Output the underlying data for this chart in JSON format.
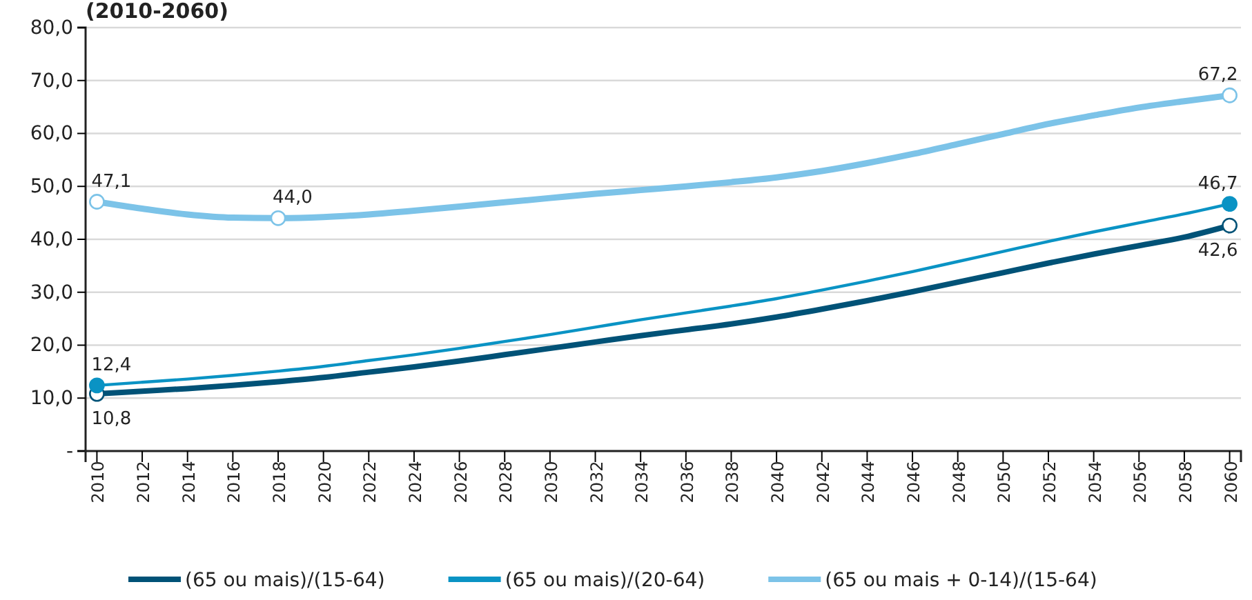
{
  "chart_data": {
    "type": "line",
    "title": "(2010-2060)",
    "x": [
      2010,
      2012,
      2014,
      2016,
      2018,
      2020,
      2022,
      2024,
      2026,
      2028,
      2030,
      2032,
      2034,
      2036,
      2038,
      2040,
      2042,
      2044,
      2046,
      2048,
      2050,
      2052,
      2054,
      2056,
      2058,
      2060
    ],
    "xlim": [
      2009.5,
      2060.5
    ],
    "xticks": [
      2010,
      2012,
      2014,
      2016,
      2018,
      2020,
      2022,
      2024,
      2026,
      2028,
      2030,
      2032,
      2034,
      2036,
      2038,
      2040,
      2042,
      2044,
      2046,
      2048,
      2050,
      2052,
      2054,
      2056,
      2058,
      2060
    ],
    "ylim": [
      0,
      80
    ],
    "yticks": [
      {
        "value": 0,
        "label": "-"
      },
      {
        "value": 10,
        "label": "10,0"
      },
      {
        "value": 20,
        "label": "20,0"
      },
      {
        "value": 30,
        "label": "30,0"
      },
      {
        "value": 40,
        "label": "40,0"
      },
      {
        "value": 50,
        "label": "50,0"
      },
      {
        "value": 60,
        "label": "60,0"
      },
      {
        "value": 70,
        "label": "70,0"
      },
      {
        "value": 80,
        "label": "80,0"
      }
    ],
    "grid": "y",
    "legend": "bottom",
    "series": [
      {
        "name": "(65 ou mais)/(15-64)",
        "color": "#005277",
        "values": [
          10.8,
          11.3,
          11.8,
          12.4,
          13.1,
          13.9,
          14.9,
          15.9,
          17.0,
          18.2,
          19.4,
          20.6,
          21.8,
          22.9,
          24.0,
          25.3,
          26.8,
          28.4,
          30.1,
          31.9,
          33.7,
          35.5,
          37.2,
          38.8,
          40.4,
          42.6
        ]
      },
      {
        "name": "(65 ou mais)/(20-64)",
        "color": "#0a93c4",
        "values": [
          12.4,
          13.0,
          13.6,
          14.3,
          15.1,
          16.0,
          17.1,
          18.2,
          19.4,
          20.7,
          22.0,
          23.4,
          24.8,
          26.1,
          27.4,
          28.8,
          30.4,
          32.1,
          33.9,
          35.8,
          37.7,
          39.6,
          41.4,
          43.1,
          44.8,
          46.7
        ]
      },
      {
        "name": "(65 ou mais + 0-14)/(15-64)",
        "color": "#7cc3e8",
        "values": [
          47.1,
          45.8,
          44.7,
          44.1,
          44.0,
          44.2,
          44.7,
          45.4,
          46.2,
          47.0,
          47.8,
          48.6,
          49.3,
          50.0,
          50.8,
          51.7,
          52.9,
          54.4,
          56.1,
          58.0,
          59.9,
          61.8,
          63.4,
          64.9,
          66.1,
          67.2
        ]
      },
      {
        "type": "scatter",
        "marker": "circle",
        "color": "#005277",
        "x": [
          2010,
          2060
        ],
        "values": [
          10.8,
          42.6
        ],
        "value_labels": [
          "10,8",
          "42,6"
        ]
      },
      {
        "type": "scatter",
        "marker": "circle",
        "color": "#0a93c4",
        "x": [
          2010,
          2060
        ],
        "values": [
          12.4,
          46.7
        ],
        "value_labels": [
          "12,4",
          "46,7"
        ]
      },
      {
        "type": "scatter",
        "marker": "circle",
        "color": "#7cc3e8",
        "x": [
          2010,
          2018,
          2060
        ],
        "values": [
          47.1,
          44.0,
          67.2
        ],
        "value_labels": [
          "47,1",
          "44,0",
          "67,2"
        ]
      }
    ]
  }
}
